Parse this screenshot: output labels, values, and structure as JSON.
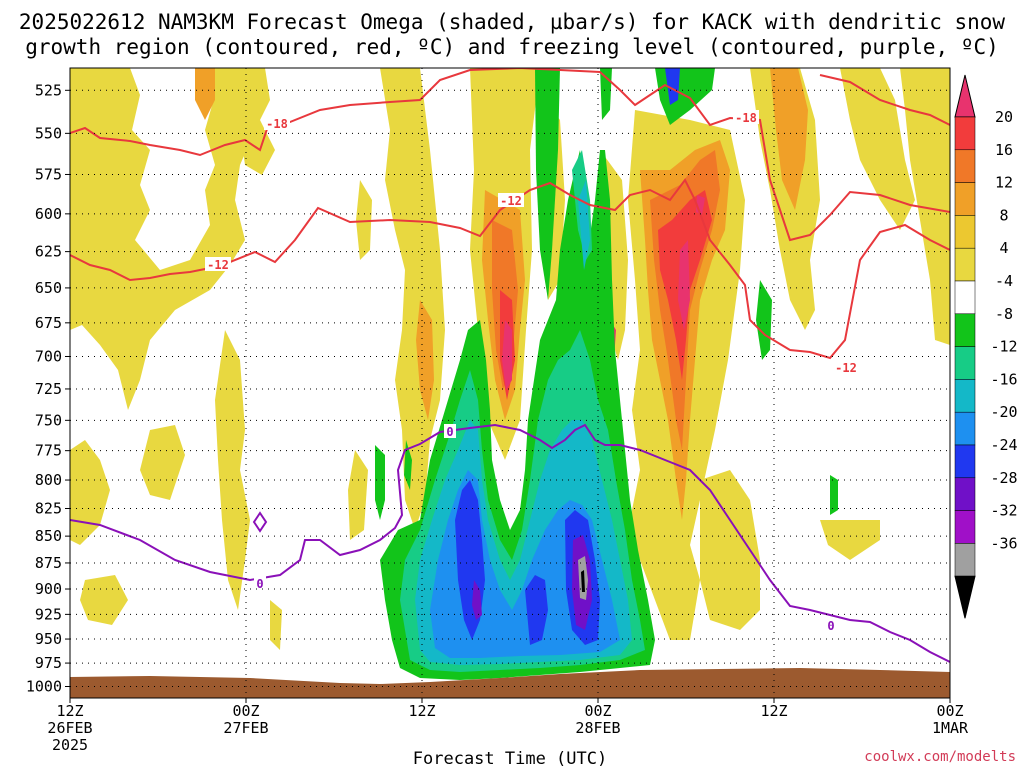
{
  "title": {
    "line1": "2025022612 NAM3KM Forecast Omega (shaded, µbar/s) for KACK with dendritic snow",
    "line2": "growth region (contoured, red, ºC) and freezing level (contoured, purple, ºC)"
  },
  "credit": "coolwx.com/modelts",
  "colors": {
    "dendritic_contour": "#e8383d",
    "freezing_contour": "#8a10b8",
    "terrain": "#9c5a2f",
    "grid": "#000000"
  },
  "chart_data": {
    "type": "heatmap",
    "xlabel": "Forecast Time (UTC)",
    "y_axis": {
      "ticks": [
        "525",
        "550",
        "575",
        "600",
        "625",
        "650",
        "675",
        "700",
        "725",
        "750",
        "775",
        "800",
        "825",
        "850",
        "875",
        "900",
        "925",
        "950",
        "975",
        "1000"
      ],
      "range": [
        525,
        1000
      ],
      "log_scale": true
    },
    "x_axis": {
      "hours_range": [
        12,
        72
      ],
      "ticks": [
        {
          "hours": 12,
          "lines": [
            "12Z",
            "26FEB",
            "2025"
          ]
        },
        {
          "hours": 24,
          "lines": [
            "00Z",
            "27FEB"
          ]
        },
        {
          "hours": 36,
          "lines": [
            "12Z",
            ""
          ]
        },
        {
          "hours": 48,
          "lines": [
            "00Z",
            "28FEB"
          ]
        },
        {
          "hours": 60,
          "lines": [
            "12Z",
            ""
          ]
        },
        {
          "hours": 72,
          "lines": [
            "00Z",
            "1MAR"
          ]
        }
      ]
    },
    "grid": true,
    "colorbar": {
      "levels": [
        "20",
        "16",
        "12",
        "8",
        "4",
        "-4",
        "-8",
        "-12",
        "-16",
        "-20",
        "-24",
        "-28",
        "-32",
        "-36"
      ],
      "colors": [
        "#e8336e",
        "#f23c3c",
        "#f07828",
        "#f0a028",
        "#ecc830",
        "#e8d840",
        "#ffffff",
        "#12c41a",
        "#17cc86",
        "#14b8c8",
        "#1e90f0",
        "#2038f0",
        "#7010c8",
        "#a010c8",
        "#a0a0a0",
        "#000000"
      ]
    },
    "contours": {
      "dendritic_labels": [
        "-18",
        "-12",
        "-12",
        "-18",
        "-12"
      ],
      "freezing_labels": [
        "0",
        "0",
        "0"
      ]
    },
    "omega_features": [
      {
        "kind": "ascent",
        "description": "strong upward motion band",
        "hours_range": [
          44.5,
          56
        ],
        "pressure_range": [
          530,
          985
        ],
        "min_value": -36
      },
      {
        "kind": "subsidence",
        "description": "sinking motion maxima",
        "hours": [
          57,
          58
        ],
        "pressure_range": [
          600,
          800
        ],
        "max_value": 20
      }
    ]
  }
}
